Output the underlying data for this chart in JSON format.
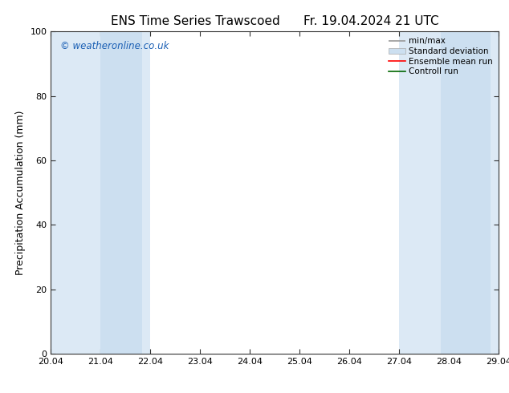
{
  "title_left": "ENS Time Series Trawscoed",
  "title_right": "Fr. 19.04.2024 21 UTC",
  "ylabel": "Precipitation Accumulation (mm)",
  "watermark": "© weatheronline.co.uk",
  "xlim_left": 20.04,
  "xlim_right": 29.04,
  "ylim_bottom": 0,
  "ylim_top": 100,
  "xtick_labels": [
    "20.04",
    "21.04",
    "22.04",
    "23.04",
    "24.04",
    "25.04",
    "26.04",
    "27.04",
    "28.04",
    "29.04"
  ],
  "xtick_values": [
    20.04,
    21.04,
    22.04,
    23.04,
    24.04,
    25.04,
    26.04,
    27.04,
    28.04,
    29.04
  ],
  "ytick_values": [
    0,
    20,
    40,
    60,
    80,
    100
  ],
  "minmax_regions": [
    {
      "x_start": 20.04,
      "x_end": 21.04
    },
    {
      "x_start": 21.875,
      "x_end": 22.04
    },
    {
      "x_start": 27.04,
      "x_end": 27.875
    },
    {
      "x_start": 28.875,
      "x_end": 29.04
    }
  ],
  "std_regions": [
    {
      "x_start": 21.04,
      "x_end": 21.875
    },
    {
      "x_start": 27.875,
      "x_end": 28.875
    }
  ],
  "shade_color_minmax": "#dce9f5",
  "shade_color_std": "#ccdff0",
  "background_color": "#ffffff",
  "plot_bg_color": "#ffffff",
  "legend_items": [
    {
      "label": "min/max",
      "color": "#aaaaaa",
      "style": "errorbar"
    },
    {
      "label": "Standard deviation",
      "color": "#ccdff0",
      "style": "box"
    },
    {
      "label": "Ensemble mean run",
      "color": "#ff0000",
      "style": "line"
    },
    {
      "label": "Controll run",
      "color": "#007700",
      "style": "line"
    }
  ],
  "watermark_color": "#1a5fb4",
  "title_fontsize": 11,
  "axis_fontsize": 9,
  "tick_fontsize": 8,
  "legend_fontsize": 7.5
}
